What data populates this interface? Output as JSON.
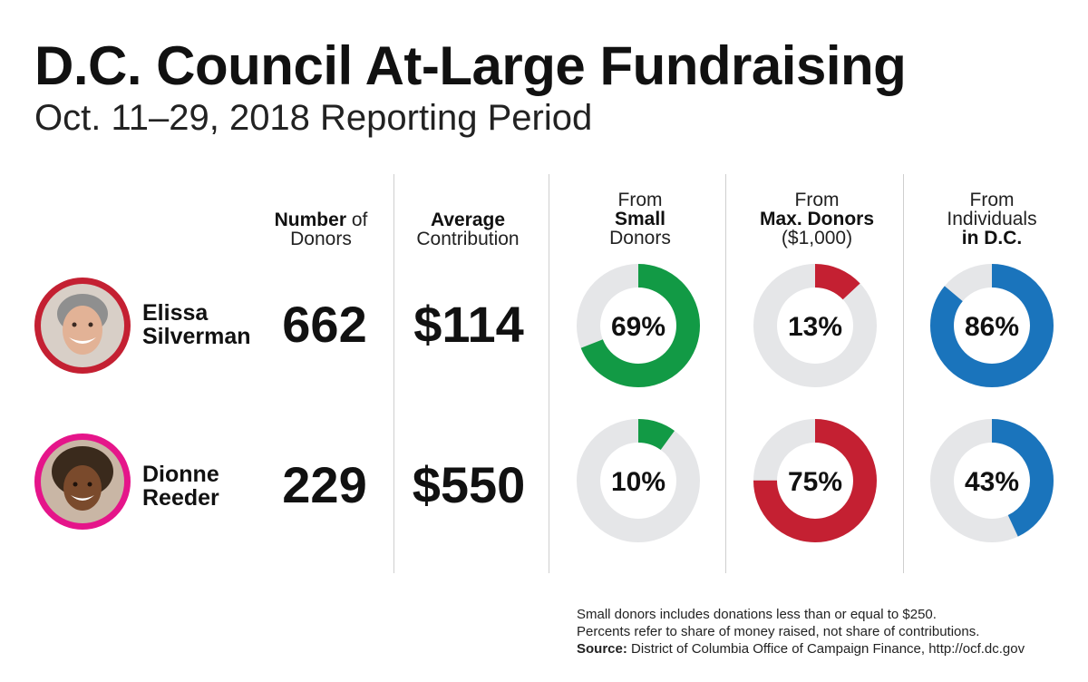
{
  "title": "D.C. Council At-Large Fundraising",
  "subtitle": "Oct. 11–29, 2018 Reporting Period",
  "columns": {
    "donors": {
      "bold": "Number",
      "rest": " of",
      "line2": "Donors"
    },
    "average": {
      "bold": "Average",
      "line2": "Contribution"
    },
    "small": {
      "line1": "From",
      "bold": "Small",
      "line3": "Donors"
    },
    "max": {
      "line1": "From",
      "bold": "Max. Donors",
      "line3": "($1,000)"
    },
    "dc": {
      "line1": "From",
      "line2": "Individuals",
      "bold": "in D.C."
    }
  },
  "colors": {
    "small": "#129a45",
    "max": "#c42032",
    "dc": "#1a74bc",
    "track": "#e5e6e8",
    "silverman_ring": "#c42032",
    "reeder_ring": "#e5158a"
  },
  "candidates": [
    {
      "first": "Elissa",
      "last": "Silverman",
      "donors": "662",
      "average": "$114",
      "small_label": "69%",
      "max_label": "13%",
      "dc_label": "86%"
    },
    {
      "first": "Dionne",
      "last": "Reeder",
      "donors": "229",
      "average": "$550",
      "small_label": "10%",
      "max_label": "75%",
      "dc_label": "43%"
    }
  ],
  "chart_data": {
    "type": "pie",
    "title": "D.C. Council At-Large Fundraising",
    "subtitle": "Oct. 11–29, 2018 Reporting Period",
    "categories": [
      "Elissa Silverman",
      "Dionne Reeder"
    ],
    "series": [
      {
        "name": "From Small Donors",
        "values": [
          69,
          10
        ]
      },
      {
        "name": "From Max. Donors ($1,000)",
        "values": [
          13,
          75
        ]
      },
      {
        "name": "From Individuals in D.C.",
        "values": [
          86,
          43
        ]
      }
    ],
    "number_of_donors": [
      662,
      229
    ],
    "average_contribution": [
      114,
      550
    ]
  },
  "notes": {
    "line1": "Small donors includes donations less than or equal to $250.",
    "line2": "Percents refer to share of money raised, not share of contributions.",
    "source_label": "Source:",
    "source_text": " District of Columbia Office of Campaign Finance, http://ocf.dc.gov"
  }
}
